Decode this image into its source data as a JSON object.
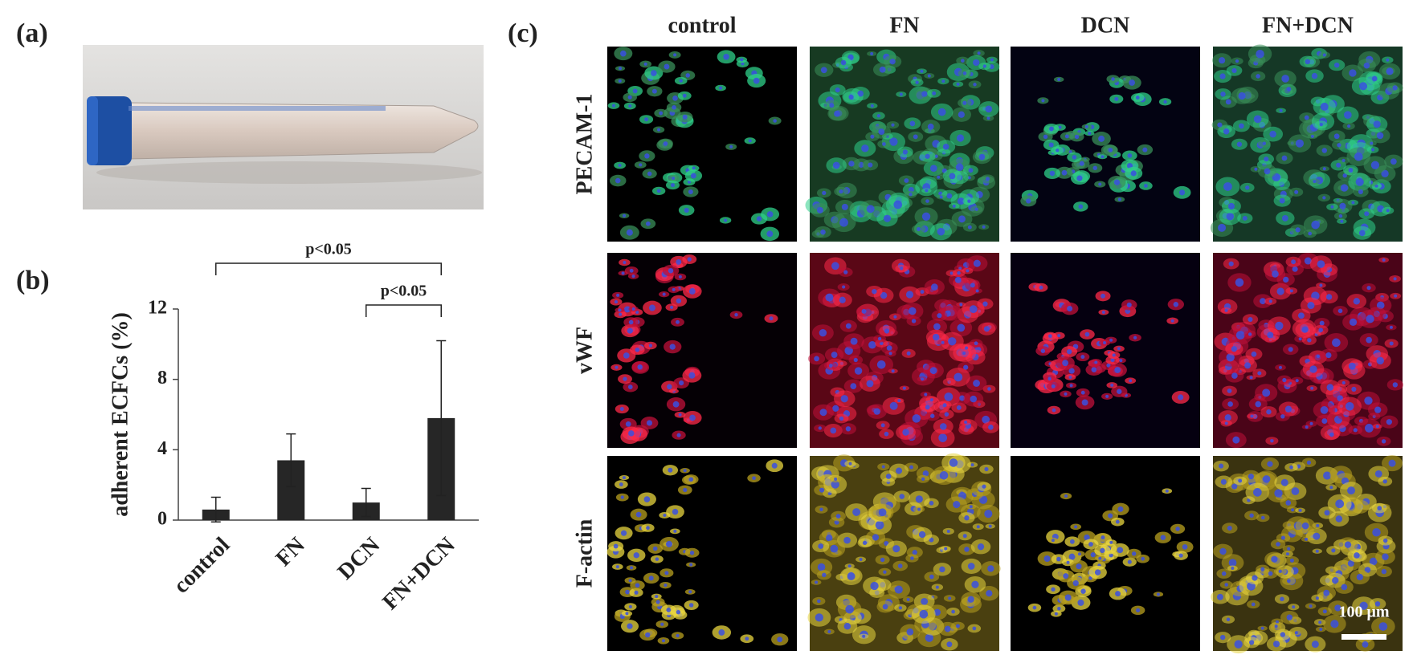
{
  "panels": {
    "a": "(a)",
    "b": "(b)",
    "c": "(c)"
  },
  "chart_data": {
    "type": "bar",
    "ylabel": "adherent ECFCs (%)",
    "categories": [
      "control",
      "FN",
      "DCN",
      "FN+DCN"
    ],
    "values": [
      0.6,
      3.4,
      1.0,
      5.8
    ],
    "errors": [
      0.7,
      1.5,
      0.8,
      4.4
    ],
    "color": "#262626",
    "ylim": [
      0,
      12
    ],
    "yticks": [
      0,
      4,
      8,
      12
    ],
    "annotations": [
      "p<0.05",
      "p<0.05"
    ]
  },
  "microscopy": {
    "columns": [
      "control",
      "FN",
      "DCN",
      "FN+DCN"
    ],
    "rows": [
      "PECAM-1",
      "vWF",
      "F-actin"
    ],
    "scale_bar": "100 μm"
  }
}
